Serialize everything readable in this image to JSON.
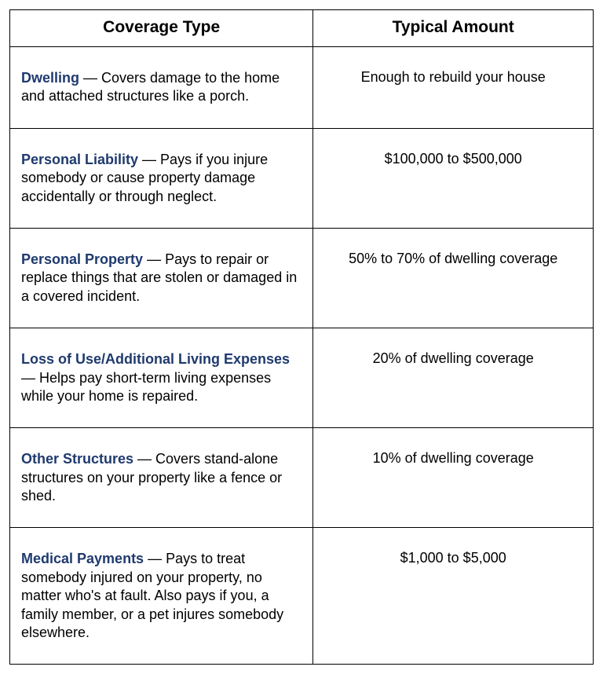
{
  "table": {
    "columns": [
      "Coverage Type",
      "Typical Amount"
    ],
    "link_color": "#1f3a6e",
    "text_color": "#000000",
    "border_color": "#000000",
    "header_fontsize": 21,
    "body_fontsize": 18,
    "col_widths_pct": [
      52,
      48
    ],
    "rows": [
      {
        "term": "Dwelling",
        "desc": " — Covers damage to the home and attached structures like a porch.",
        "amount": "Enough to rebuild your house"
      },
      {
        "term": "Personal Liability",
        "desc": " — Pays if you injure somebody or cause property damage accidentally or through neglect.",
        "amount": "$100,000 to $500,000"
      },
      {
        "term": "Personal Property",
        "desc": " — Pays to repair or replace things that are stolen or damaged in a covered incident.",
        "amount": "50% to 70% of dwelling coverage"
      },
      {
        "term": "Loss of Use/Additional Living Expenses",
        "desc": " — Helps pay short-term living expenses while your home is repaired.",
        "amount": "20% of dwelling coverage"
      },
      {
        "term": "Other Structures",
        "desc": " — Covers stand-alone structures on your property like a fence or shed.",
        "amount": "10% of dwelling coverage"
      },
      {
        "term": "Medical Payments",
        "desc": " — Pays to treat somebody injured on your property, no matter who's at fault. Also pays if you, a family member, or a pet injures somebody elsewhere.",
        "amount": "$1,000 to $5,000"
      }
    ]
  }
}
